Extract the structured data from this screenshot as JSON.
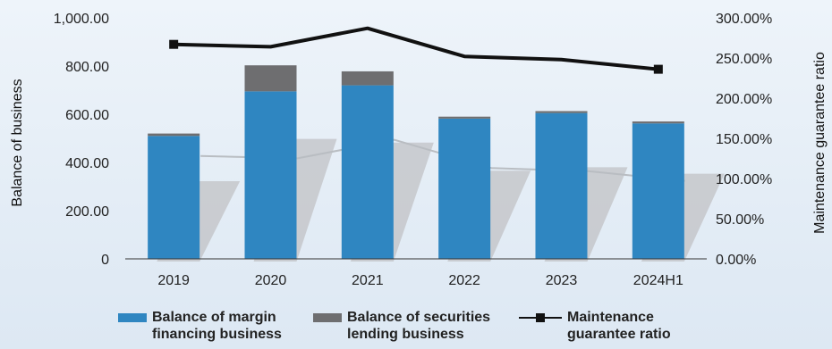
{
  "chart_data": {
    "type": "bar",
    "stacked": true,
    "categories": [
      "2019",
      "2020",
      "2021",
      "2022",
      "2023",
      "2024H1"
    ],
    "series": [
      {
        "name": "Balance of margin financing business",
        "kind": "bar",
        "axis": "left",
        "color": "#2f86c1",
        "values": [
          510,
          695,
          720,
          582,
          605,
          562
        ]
      },
      {
        "name": "Balance of securities lending business",
        "kind": "bar",
        "axis": "left",
        "color": "#6e6e70",
        "values": [
          10,
          108,
          58,
          8,
          8,
          8
        ]
      },
      {
        "name": "Maintenance guarantee ratio",
        "kind": "line",
        "axis": "right",
        "color": "#111111",
        "values": [
          267,
          264,
          287,
          252,
          248,
          236
        ]
      }
    ],
    "ylabel": "Balance of business",
    "y2label": "Maintenance guarantee ratio",
    "ylim": [
      0,
      1000
    ],
    "y2lim": [
      0,
      300
    ],
    "yticks": [
      "0",
      "200.00",
      "400.00",
      "600.00",
      "800.00",
      "1,000.00"
    ],
    "y2ticks": [
      "0.00%",
      "50.00%",
      "100.00%",
      "150.00%",
      "200.00%",
      "250.00%",
      "300.00%"
    ],
    "grid": false,
    "legend_position": "bottom"
  }
}
